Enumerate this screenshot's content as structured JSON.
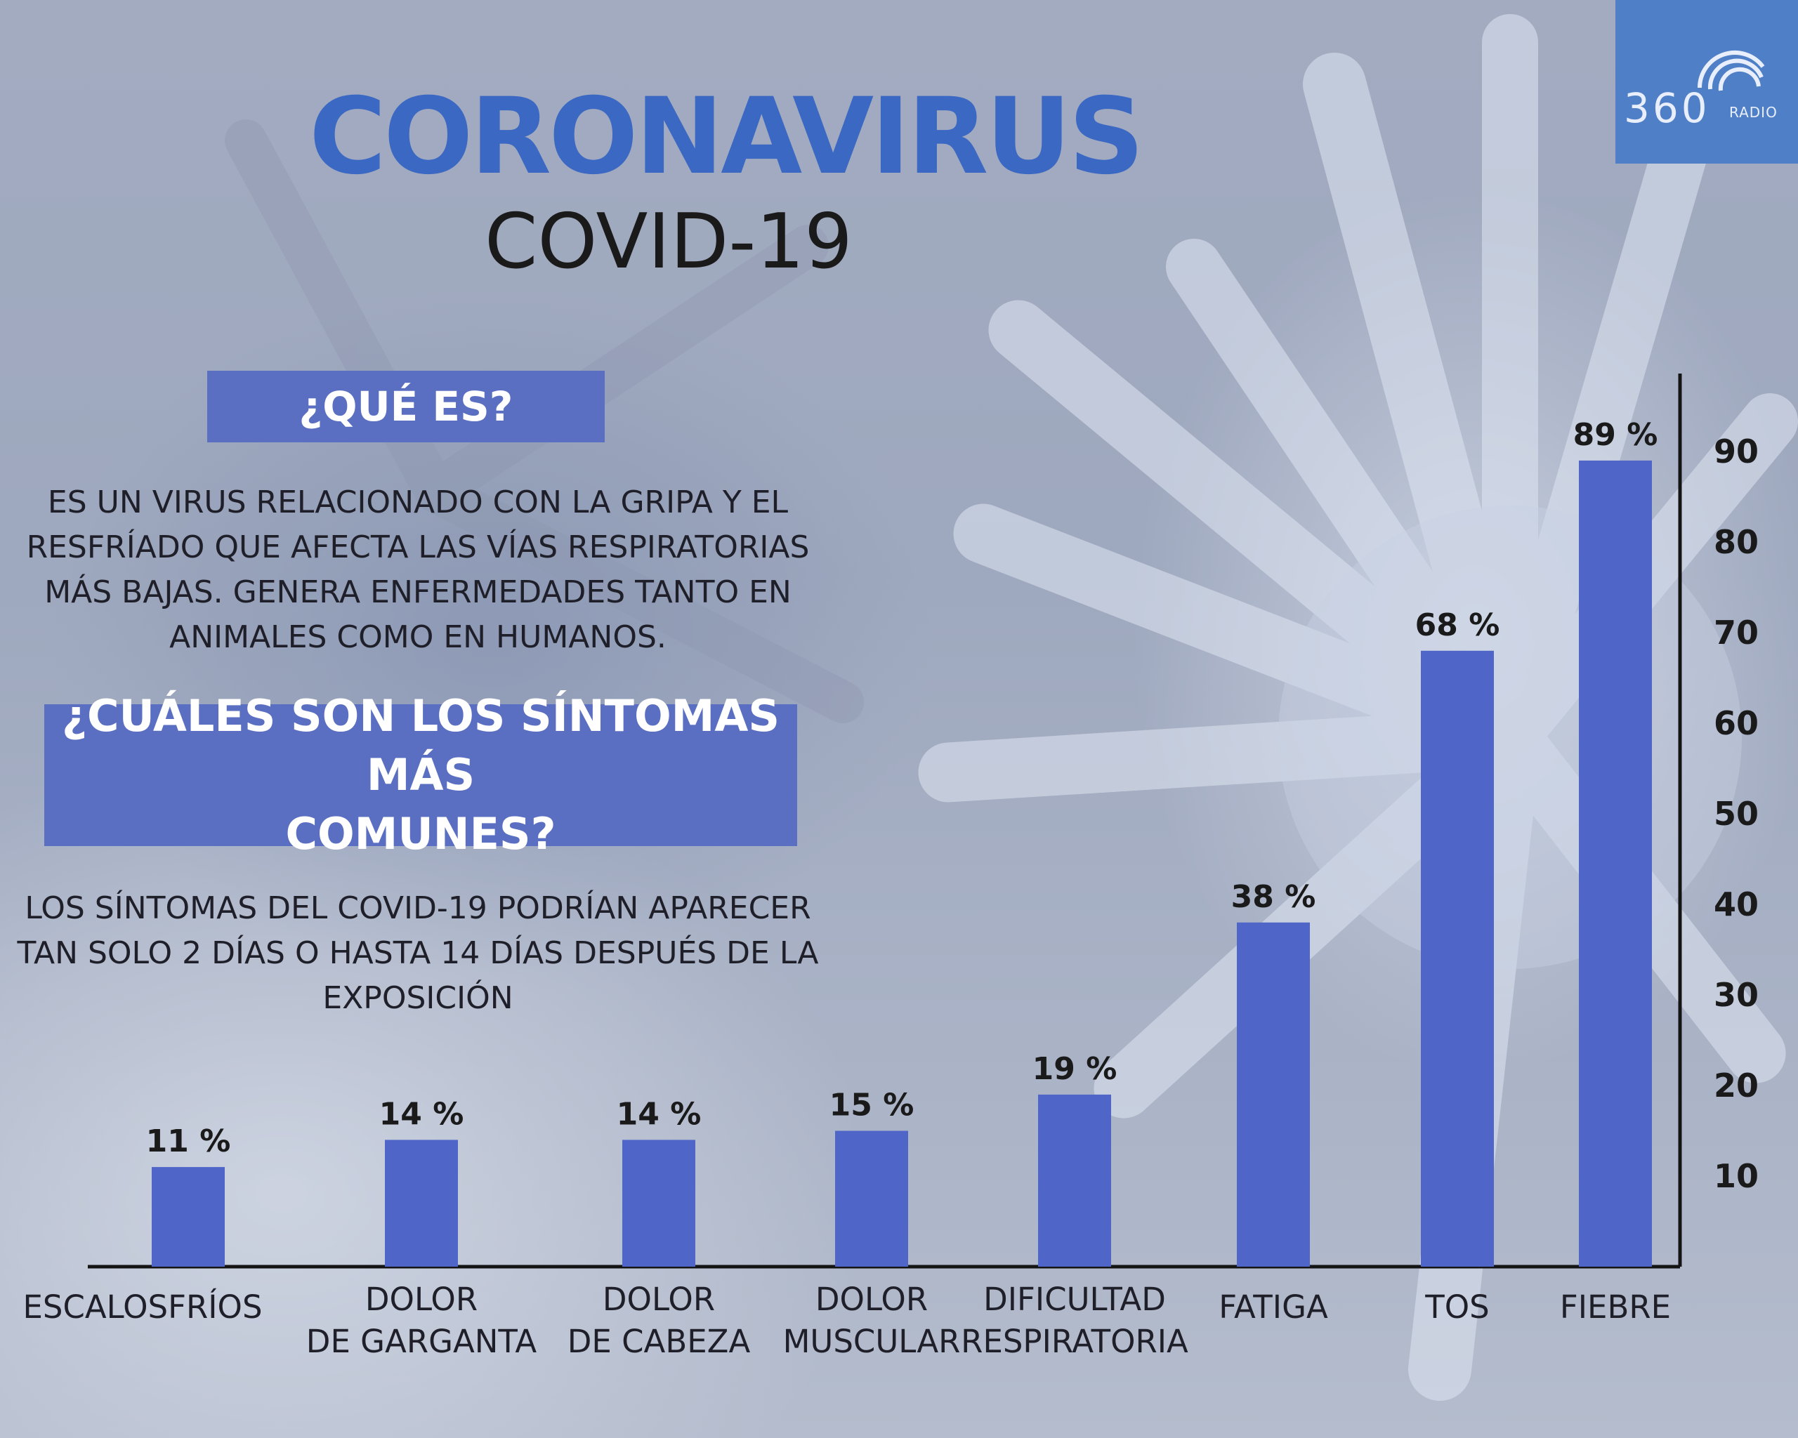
{
  "brand": {
    "logo_main": "360",
    "logo_sub": "RADIO",
    "color": "#4f7fc6"
  },
  "header": {
    "title": "CORONAVIRUS",
    "subtitle": "COVID-19",
    "title_color": "#3b68c2"
  },
  "sections": {
    "what": {
      "heading": "¿QUÉ ES?",
      "lines": [
        "ES UN VIRUS RELACIONADO CON LA GRIPA Y EL",
        "RESFRÍADO QUE AFECTA LAS VÍAS RESPIRATORIAS",
        "MÁS BAJAS. GENERA ENFERMEDADES TANTO EN",
        "ANIMALES COMO EN HUMANOS."
      ]
    },
    "symptoms": {
      "heading_lines": [
        "¿CUÁLES SON LOS SÍNTOMAS MÁS",
        "COMUNES?"
      ],
      "lines": [
        "LOS SÍNTOMAS DEL COVID-19 PODRÍAN APARECER",
        "TAN SOLO 2 DÍAS O HASTA 14 DÍAS DESPUÉS DE LA",
        "EXPOSICIÓN"
      ]
    }
  },
  "chart_data": {
    "type": "bar",
    "categories": [
      [
        "ESCALOSFRÍOS"
      ],
      [
        "DOLOR",
        "DE GARGANTA"
      ],
      [
        "DOLOR",
        "DE CABEZA"
      ],
      [
        "DOLOR",
        "MUSCULAR"
      ],
      [
        "DIFICULTAD",
        "RESPIRATORIA"
      ],
      [
        "FATIGA"
      ],
      [
        "TOS"
      ],
      [
        "FIEBRE"
      ]
    ],
    "values": [
      11,
      14,
      14,
      15,
      19,
      38,
      68,
      89
    ],
    "value_labels": [
      "11 %",
      "14 %",
      "14 %",
      "15 %",
      "19 %",
      "38 %",
      "68 %",
      "89 %"
    ],
    "yticks": [
      "10",
      "20",
      "30",
      "40",
      "50",
      "60",
      "70",
      "80",
      "90"
    ],
    "ylim": [
      0,
      100
    ],
    "y_axis_side": "right",
    "bar_color": "#4f66c8",
    "title": "",
    "xlabel": "",
    "ylabel": ""
  }
}
